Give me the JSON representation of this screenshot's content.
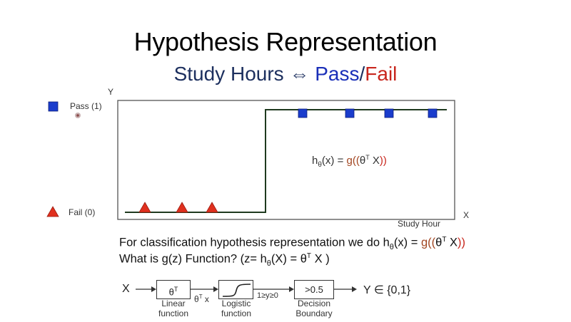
{
  "slide": {
    "title": "Hypothesis Representation",
    "subtitle": {
      "part1": "Study Hours ⇔ ",
      "pass": "Pass",
      "slash": "/",
      "fail": "Fail"
    }
  },
  "plot": {
    "y_axis_label": "Y",
    "x_axis_label": "X",
    "x_caption": "Study Hour",
    "legend": {
      "pass_label": "Pass (1)",
      "fail_label": "Fail (0)"
    },
    "formula": {
      "h": "h",
      "theta": "θ",
      "mid": "(x) = ",
      "g": "g",
      "paren_open": "((",
      "thetaT": "θ",
      "T": "T",
      "X": " X",
      "paren_close": "))"
    },
    "pass_point_count": 4,
    "fail_point_count": 3,
    "colors": {
      "pass": "#1a3ccc",
      "fail": "#e0301e",
      "curve": "#1f3a1f"
    }
  },
  "text": {
    "line1_prefix": "For classification hypothesis representation we do h",
    "line1_sub": "θ",
    "line1_mid": "(x) = ",
    "line1_g": "g",
    "line1_open": "((",
    "line1_theta": "θ",
    "line1_T": "T",
    "line1_X": " X",
    "line1_close": "))",
    "line2_a": "What is g(z) Function? (z= h",
    "line2_sub": "θ",
    "line2_b": "(X) = θ",
    "line2_T": "T",
    "line2_c": " X )"
  },
  "flow": {
    "input": "X",
    "box1": "θ",
    "box1_sup": "T",
    "box1_caption": "Linear\nfunction",
    "edge1": "θ",
    "edge1_sup": "T",
    "edge1_rest": " x",
    "box2_caption": "Logistic\nfunction",
    "edge2": "1≥y≥0",
    "box3": ">0.5",
    "box3_caption": "Decision\nBoundary",
    "output": "Y ∈ {0,1}"
  }
}
